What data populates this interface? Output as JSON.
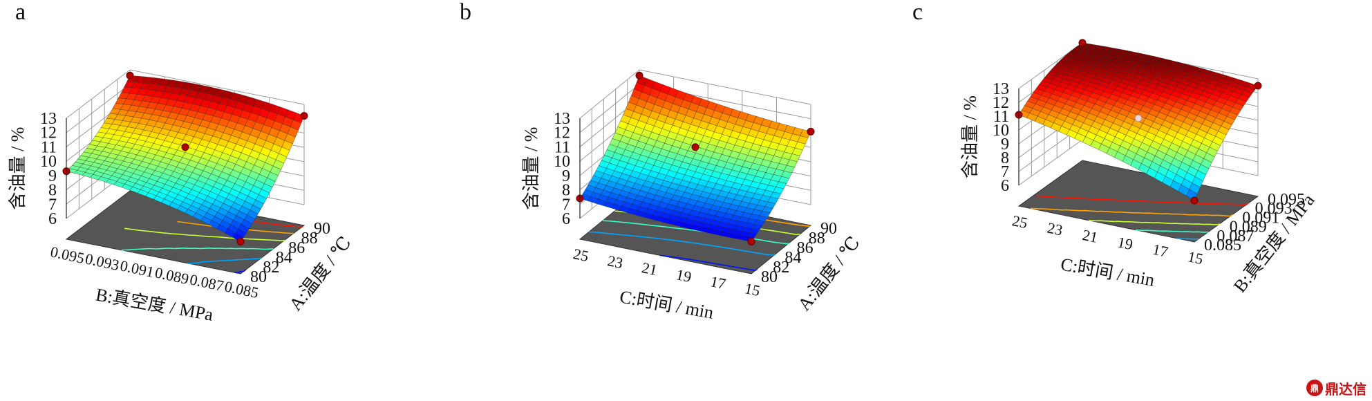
{
  "watermark": {
    "text": "鼎达信",
    "badge_text": "鼎"
  },
  "chart_data": [
    {
      "type": "surface",
      "panel_label": "a",
      "zlabel": "含油量 / %",
      "zlim": [
        6,
        13
      ],
      "z_ticks": [
        "6",
        "7",
        "8",
        "9",
        "10",
        "11",
        "12",
        "13"
      ],
      "right_axis": {
        "label": "A:温度 / ℃",
        "ticks": [
          "80",
          "82",
          "84",
          "86",
          "88",
          "90"
        ],
        "range": [
          80,
          90
        ]
      },
      "left_axis": {
        "label": "B:真空度 / MPa",
        "ticks": [
          "0.085",
          "0.087",
          "0.089",
          "0.091",
          "0.093",
          "0.095"
        ],
        "range": [
          0.085,
          0.095
        ]
      },
      "corner_values": {
        "z00": 6.8,
        "z10": 12.2,
        "z01": 9.3,
        "z11": 12.6
      },
      "quadratic_right": -1.2,
      "quadratic_left": 1.0,
      "center_value": 10.5,
      "design_points": [
        {
          "right": 80,
          "left": 0.085,
          "z": 6.8
        },
        {
          "right": 90,
          "left": 0.085,
          "z": 12.2
        },
        {
          "right": 80,
          "left": 0.095,
          "z": 9.3
        },
        {
          "right": 90,
          "left": 0.095,
          "z": 12.6
        },
        {
          "right": 85,
          "left": 0.09,
          "z": 10.5
        }
      ]
    },
    {
      "type": "surface",
      "panel_label": "b",
      "zlabel": "含油量 / %",
      "zlim": [
        6,
        13
      ],
      "z_ticks": [
        "6",
        "7",
        "8",
        "9",
        "10",
        "11",
        "12",
        "13"
      ],
      "right_axis": {
        "label": "A:温度 / ℃",
        "ticks": [
          "80",
          "82",
          "84",
          "86",
          "88",
          "90"
        ],
        "range": [
          80,
          90
        ]
      },
      "left_axis": {
        "label": "C:时间 / min",
        "ticks": [
          "15",
          "17",
          "19",
          "21",
          "23",
          "25"
        ],
        "range": [
          15,
          25
        ]
      },
      "corner_values": {
        "z00": 6.8,
        "z10": 11.1,
        "z01": 7.4,
        "z11": 12.6
      },
      "quadratic_right": -1.0,
      "quadratic_left": -0.4,
      "center_value": 10.5,
      "design_points": [
        {
          "right": 80,
          "left": 15,
          "z": 6.8
        },
        {
          "right": 90,
          "left": 15,
          "z": 11.1
        },
        {
          "right": 80,
          "left": 25,
          "z": 7.4
        },
        {
          "right": 90,
          "left": 25,
          "z": 12.6
        },
        {
          "right": 85,
          "left": 20,
          "z": 10.5
        }
      ]
    },
    {
      "type": "surface",
      "panel_label": "c",
      "zlabel": "含油量 / %",
      "zlim": [
        6,
        13
      ],
      "z_ticks": [
        "6",
        "7",
        "8",
        "9",
        "10",
        "11",
        "12",
        "13"
      ],
      "right_axis": {
        "label": "B:真空度 / MPa",
        "ticks": [
          "0.085",
          "0.087",
          "0.089",
          "0.091",
          "0.093",
          "0.095"
        ],
        "range": [
          0.085,
          0.095
        ]
      },
      "left_axis": {
        "label": "C:时间 / min",
        "ticks": [
          "15",
          "17",
          "19",
          "21",
          "23",
          "25"
        ],
        "range": [
          15,
          25
        ]
      },
      "corner_values": {
        "z00": 7.5,
        "z10": 12.5,
        "z01": 11.1,
        "z11": 13.0
      },
      "quadratic_right": 1.2,
      "quadratic_left": 0.6,
      "center_value": 10.5,
      "design_points": [
        {
          "right": 0.085,
          "left": 15,
          "z": 7.5
        },
        {
          "right": 0.095,
          "left": 15,
          "z": 12.5
        },
        {
          "right": 0.085,
          "left": 25,
          "z": 11.1
        },
        {
          "right": 0.095,
          "left": 25,
          "z": 13.0
        },
        {
          "right": 0.09,
          "left": 20,
          "z": 10.5
        }
      ]
    }
  ]
}
